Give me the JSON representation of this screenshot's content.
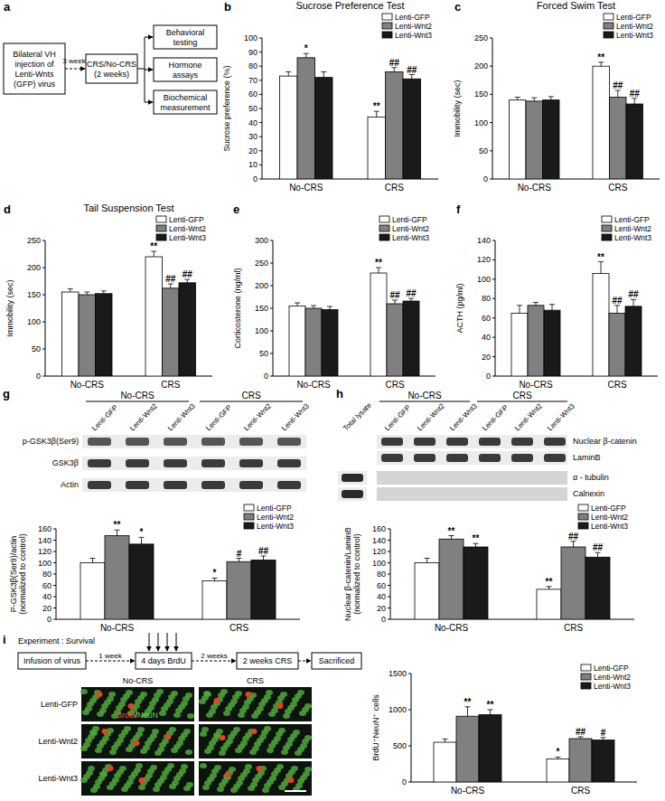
{
  "panel_letters": [
    "a",
    "b",
    "c",
    "d",
    "e",
    "f",
    "g",
    "h",
    "i"
  ],
  "diagram_a": {
    "start": "Bilateral VH injection of Lenti-Wnts (GFP) virus",
    "interval": "3 weeks",
    "middle": "CRS/No-CRS (2 weeks)",
    "outcomes": [
      "Behavioral testing",
      "Hormone assays",
      "Biochemical measurement"
    ]
  },
  "chart_data": [
    {
      "type": "bar",
      "title": "Sucrose Preference Test",
      "y_label": [
        "Sucrose preference (%)"
      ],
      "categories": [
        "No-CRS",
        "CRS"
      ],
      "series": [
        {
          "name": "Lenti-GFP",
          "color": "#ffffff",
          "values": [
            73,
            44
          ],
          "errors": [
            3,
            4
          ],
          "significance": [
            null,
            "**"
          ]
        },
        {
          "name": "Lenti-Wnt2",
          "color": "#808080",
          "values": [
            86,
            76
          ],
          "errors": [
            3,
            3
          ],
          "significance": [
            "*",
            "##"
          ]
        },
        {
          "name": "Lenti-Wnt3",
          "color": "#1a1a1a",
          "values": [
            72,
            71
          ],
          "errors": [
            4,
            3
          ],
          "significance": [
            null,
            "##"
          ]
        }
      ],
      "ylim": [
        0,
        100
      ],
      "yticks": [
        0,
        10,
        20,
        30,
        40,
        50,
        60,
        70,
        80,
        90,
        100
      ],
      "legend": "upper-right"
    },
    {
      "type": "bar",
      "title": "Forced Swim Test",
      "y_label": [
        "Immobility (sec)"
      ],
      "categories": [
        "No-CRS",
        "CRS"
      ],
      "series": [
        {
          "name": "Lenti-GFP",
          "color": "#ffffff",
          "values": [
            140,
            200
          ],
          "errors": [
            5,
            7
          ],
          "significance": [
            null,
            "**"
          ]
        },
        {
          "name": "Lenti-Wnt2",
          "color": "#808080",
          "values": [
            138,
            145
          ],
          "errors": [
            6,
            12
          ],
          "significance": [
            null,
            "##"
          ]
        },
        {
          "name": "Lenti-Wnt3",
          "color": "#1a1a1a",
          "values": [
            140,
            133
          ],
          "errors": [
            6,
            10
          ],
          "significance": [
            null,
            "##"
          ]
        }
      ],
      "ylim": [
        0,
        250
      ],
      "yticks": [
        0,
        50,
        100,
        150,
        200,
        250
      ],
      "legend": "upper-right"
    },
    {
      "type": "bar",
      "title": "Tail Suspension Test",
      "y_label": [
        "Immobility (sec)"
      ],
      "categories": [
        "No-CRS",
        "CRS"
      ],
      "series": [
        {
          "name": "Lenti-GFP",
          "color": "#ffffff",
          "values": [
            155,
            220
          ],
          "errors": [
            6,
            10
          ],
          "significance": [
            null,
            "**"
          ]
        },
        {
          "name": "Lenti-Wnt2",
          "color": "#808080",
          "values": [
            150,
            162
          ],
          "errors": [
            5,
            8
          ],
          "significance": [
            null,
            "##"
          ]
        },
        {
          "name": "Lenti-Wnt3",
          "color": "#1a1a1a",
          "values": [
            152,
            172
          ],
          "errors": [
            5,
            6
          ],
          "significance": [
            null,
            "##"
          ]
        }
      ],
      "ylim": [
        0,
        250
      ],
      "yticks": [
        0,
        50,
        100,
        150,
        200,
        250
      ],
      "legend": "upper-right"
    },
    {
      "type": "bar",
      "y_label": [
        "Corticosterone (ng/ml)"
      ],
      "categories": [
        "No-CRS",
        "CRS"
      ],
      "series": [
        {
          "name": "Lenti-GFP",
          "color": "#ffffff",
          "values": [
            155,
            228
          ],
          "errors": [
            7,
            12
          ],
          "significance": [
            null,
            "**"
          ]
        },
        {
          "name": "Lenti-Wnt2",
          "color": "#808080",
          "values": [
            150,
            160
          ],
          "errors": [
            6,
            8
          ],
          "significance": [
            null,
            "##"
          ]
        },
        {
          "name": "Lenti-Wnt3",
          "color": "#1a1a1a",
          "values": [
            147,
            166
          ],
          "errors": [
            7,
            6
          ],
          "significance": [
            null,
            "##"
          ]
        }
      ],
      "ylim": [
        0,
        300
      ],
      "yticks": [
        0,
        50,
        100,
        150,
        200,
        250,
        300
      ],
      "legend": "upper-right"
    },
    {
      "type": "bar",
      "y_label": [
        "ACTH (pg/ml)"
      ],
      "categories": [
        "No-CRS",
        "CRS"
      ],
      "series": [
        {
          "name": "Lenti-GFP",
          "color": "#ffffff",
          "values": [
            65,
            106
          ],
          "errors": [
            8,
            12
          ],
          "significance": [
            null,
            "**"
          ]
        },
        {
          "name": "Lenti-Wnt2",
          "color": "#808080",
          "values": [
            73,
            65
          ],
          "errors": [
            3,
            8
          ],
          "significance": [
            null,
            "##"
          ]
        },
        {
          "name": "Lenti-Wnt3",
          "color": "#1a1a1a",
          "values": [
            68,
            72
          ],
          "errors": [
            6,
            7
          ],
          "significance": [
            null,
            "##"
          ]
        }
      ],
      "ylim": [
        0,
        140
      ],
      "yticks": [
        0,
        20,
        40,
        60,
        80,
        100,
        120,
        140
      ],
      "legend": "upper-right"
    },
    {
      "type": "bar",
      "y_label": [
        "P-GSK3β(Ser9)/actin",
        "(normalized to control)"
      ],
      "categories": [
        "No-CRS",
        "CRS"
      ],
      "series": [
        {
          "name": "Lenti-GFP",
          "color": "#ffffff",
          "values": [
            100,
            68
          ],
          "errors": [
            8,
            5
          ],
          "significance": [
            null,
            "*"
          ]
        },
        {
          "name": "Lenti-Wnt2",
          "color": "#808080",
          "values": [
            148,
            102
          ],
          "errors": [
            10,
            6
          ],
          "significance": [
            "**",
            "#"
          ]
        },
        {
          "name": "Lenti-Wnt3",
          "color": "#1a1a1a",
          "values": [
            133,
            105
          ],
          "errors": [
            12,
            7
          ],
          "significance": [
            "*",
            "##"
          ]
        }
      ],
      "ylim": [
        0,
        160
      ],
      "yticks": [
        0,
        20,
        40,
        60,
        80,
        100,
        120,
        140,
        160
      ],
      "legend": "upper-right"
    },
    {
      "type": "bar",
      "y_label": [
        "Nuclear β-catenin/LaminB",
        "(normalized to control)"
      ],
      "categories": [
        "No-CRS",
        "CRS"
      ],
      "series": [
        {
          "name": "Lenti-GFP",
          "color": "#ffffff",
          "values": [
            100,
            53
          ],
          "errors": [
            8,
            5
          ],
          "significance": [
            null,
            "**"
          ]
        },
        {
          "name": "Lenti-Wnt2",
          "color": "#808080",
          "values": [
            142,
            128
          ],
          "errors": [
            6,
            10
          ],
          "significance": [
            "**",
            "##"
          ]
        },
        {
          "name": "Lenti-Wnt3",
          "color": "#1a1a1a",
          "values": [
            128,
            110
          ],
          "errors": [
            6,
            8
          ],
          "significance": [
            "**",
            "##"
          ]
        }
      ],
      "ylim": [
        0,
        160
      ],
      "yticks": [
        0,
        20,
        40,
        60,
        80,
        100,
        120,
        140,
        160
      ],
      "legend": "upper-right"
    },
    {
      "type": "bar",
      "y_label": [
        "BrdU⁺NeuN⁺ cells"
      ],
      "categories": [
        "No-CRS",
        "CRS"
      ],
      "series": [
        {
          "name": "Lenti-GFP",
          "color": "#ffffff",
          "values": [
            550,
            320
          ],
          "errors": [
            45,
            25
          ],
          "significance": [
            null,
            "*"
          ]
        },
        {
          "name": "Lenti-Wnt2",
          "color": "#808080",
          "values": [
            910,
            600
          ],
          "errors": [
            130,
            25
          ],
          "significance": [
            "**",
            "##"
          ]
        },
        {
          "name": "Lenti-Wnt3",
          "color": "#1a1a1a",
          "values": [
            930,
            580
          ],
          "errors": [
            70,
            35
          ],
          "significance": [
            "**",
            "#"
          ]
        }
      ],
      "ylim": [
        0,
        1500
      ],
      "yticks": [
        0,
        500,
        1000,
        1500
      ],
      "legend": "upper-right"
    }
  ],
  "blot_g": {
    "groups": [
      "No-CRS",
      "CRS"
    ],
    "lanes": [
      "Lenti-GFP",
      "Lenti-Wnt2",
      "Lenti-Wnt3",
      "Lenti-GFP",
      "Lenti-Wnt2",
      "Lenti-Wnt3"
    ],
    "rows": [
      "p-GSK3β(Ser9)",
      "GSK3β",
      "Actin"
    ]
  },
  "blot_h": {
    "groups": [
      "No-CRS",
      "CRS"
    ],
    "lanes": [
      "Lenti-GFP",
      "Lenti-Wnt2",
      "Lenti-Wnt3",
      "Lenti-GFP",
      "Lenti-Wnt2",
      "Lenti-Wnt3"
    ],
    "extra_lane": "Total lysate",
    "rows": [
      "Nuclear β-catenin",
      "LaminB"
    ],
    "control_rows": [
      "α - tubulin",
      "Calnexin"
    ]
  },
  "panel_i": {
    "timeline_title": "Experiment : Survival",
    "steps": [
      "Infusion of virus",
      "4 days BrdU",
      "2 weeks CRS",
      "Sacrificed"
    ],
    "intervals": [
      "1 week",
      "2 weeks"
    ],
    "micrograph_columns": [
      "No-CRS",
      "CRS"
    ],
    "micrograph_rows": [
      "Lenti-GFP",
      "Lenti-Wnt2",
      "Lenti-Wnt3"
    ],
    "stain_labels": [
      "BrdU",
      "/",
      "NeuN"
    ]
  }
}
